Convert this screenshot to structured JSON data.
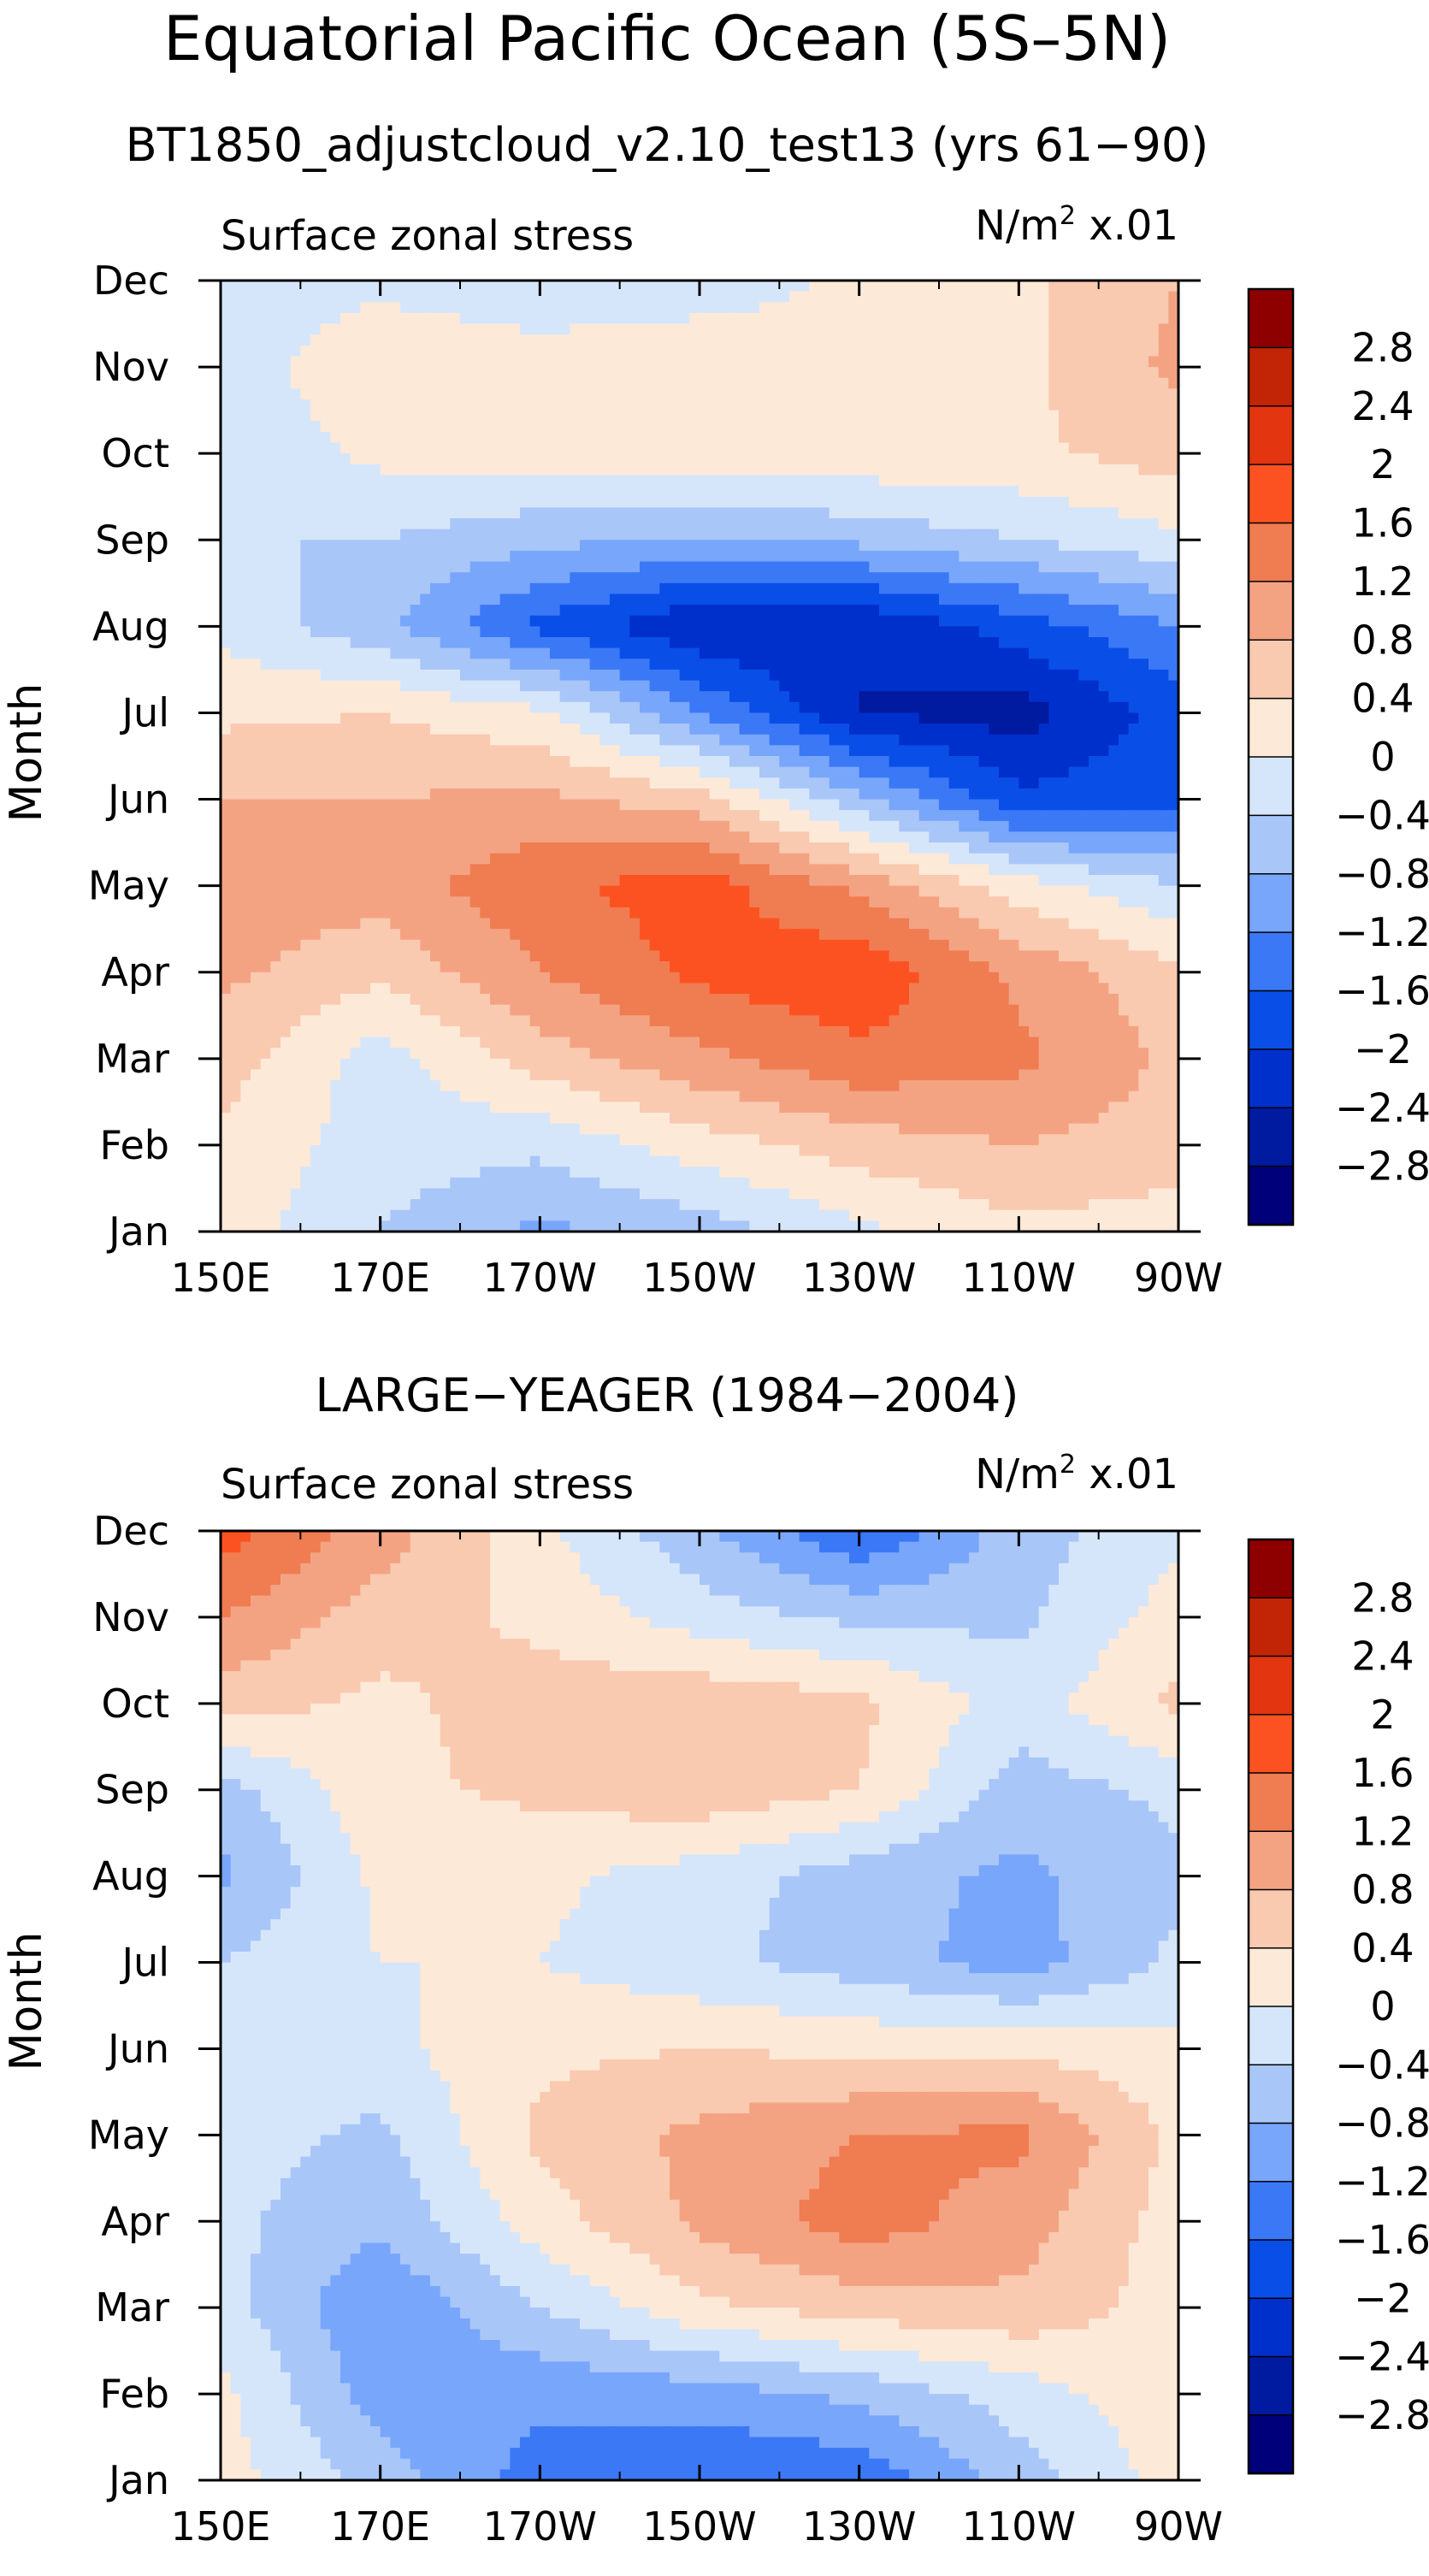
{
  "figure": {
    "title": "Equatorial Pacific Ocean (5S–5N)"
  },
  "colorbar_labels": [
    "2.8",
    "2.4",
    "2",
    "1.6",
    "1.2",
    "0.8",
    "0.4",
    "0",
    "−0.4",
    "−0.8",
    "−1.2",
    "−1.6",
    "−2",
    "−2.4",
    "−2.8"
  ],
  "colors": {
    "scale": [
      "#00007a",
      "#001aa0",
      "#0030cc",
      "#0a4ee8",
      "#3a78f6",
      "#78a6fa",
      "#a9c6f8",
      "#d6e6fa",
      "#fde9d8",
      "#f9c9b0",
      "#f4a382",
      "#f07c52",
      "#fc5222",
      "#e23510",
      "#c22406",
      "#8e0000"
    ]
  },
  "chart_data": [
    {
      "type": "heatmap",
      "title": "BT1850_adjustcloud_v2.10_test13 (yrs 61−90)",
      "field_label": "Surface zonal stress",
      "units_label": "N/m",
      "units_power": "2",
      "units_scale": " x.01",
      "xlabel": "",
      "ylabel": "Month",
      "x_ticks": [
        "150E",
        "170E",
        "170W",
        "150W",
        "130W",
        "110W",
        "90W"
      ],
      "x_lon": [
        150,
        170,
        190,
        210,
        230,
        250,
        270
      ],
      "y_ticks": [
        "Jan",
        "Feb",
        "Mar",
        "Apr",
        "May",
        "Jun",
        "Jul",
        "Aug",
        "Sep",
        "Oct",
        "Nov",
        "Dec"
      ],
      "xlim": [
        150,
        270
      ],
      "ylim": [
        1,
        12
      ],
      "levels": [
        -2.8,
        -2.4,
        -2,
        -1.6,
        -1.2,
        -0.8,
        -0.4,
        0,
        0.4,
        0.8,
        1.2,
        1.6,
        2,
        2.4,
        2.8
      ],
      "lon_grid": [
        150,
        170,
        190,
        210,
        230,
        250,
        270
      ],
      "values": [
        [
          0.2,
          -0.4,
          -0.9,
          -0.6,
          -0.1,
          0.3,
          0.2
        ],
        [
          0.3,
          -0.2,
          -0.3,
          0.2,
          0.6,
          0.8,
          0.6
        ],
        [
          0.6,
          -0.2,
          0.6,
          1.1,
          1.5,
          1.3,
          0.7
        ],
        [
          0.9,
          0.5,
          1.2,
          1.7,
          1.9,
          1.1,
          0.5
        ],
        [
          1.0,
          1.0,
          1.5,
          1.8,
          1.1,
          0.2,
          -0.4
        ],
        [
          0.8,
          0.8,
          0.9,
          0.6,
          -0.7,
          -1.9,
          -1.7
        ],
        [
          0.3,
          0.4,
          0.1,
          -1.2,
          -2.4,
          -2.6,
          -1.8
        ],
        [
          -0.1,
          -0.7,
          -1.7,
          -2.4,
          -2.4,
          -1.8,
          -1.2
        ],
        [
          -0.4,
          -0.4,
          -0.7,
          -0.8,
          -0.7,
          -0.4,
          -0.1
        ],
        [
          -0.3,
          0.1,
          0.2,
          0.3,
          0.3,
          0.3,
          0.6
        ],
        [
          -0.2,
          0.3,
          0.2,
          0.4,
          0.2,
          0.3,
          0.9
        ],
        [
          -0.2,
          -0.1,
          -0.3,
          -0.3,
          0.1,
          0.3,
          0.8
        ]
      ]
    },
    {
      "type": "heatmap",
      "title": "LARGE−YEAGER (1984−2004)",
      "field_label": "Surface zonal stress",
      "units_label": "N/m",
      "units_power": "2",
      "units_scale": " x.01",
      "xlabel": "",
      "ylabel": "Month",
      "x_ticks": [
        "150E",
        "170E",
        "170W",
        "150W",
        "130W",
        "110W",
        "90W"
      ],
      "x_lon": [
        150,
        170,
        190,
        210,
        230,
        250,
        270
      ],
      "y_ticks": [
        "Jan",
        "Feb",
        "Mar",
        "Apr",
        "May",
        "Jun",
        "Jul",
        "Aug",
        "Sep",
        "Oct",
        "Nov",
        "Dec"
      ],
      "xlim": [
        150,
        270
      ],
      "ylim": [
        1,
        12
      ],
      "levels": [
        -2.8,
        -2.4,
        -2,
        -1.6,
        -1.2,
        -0.8,
        -0.4,
        0,
        0.4,
        0.8,
        1.2,
        1.6,
        2,
        2.4,
        2.8
      ],
      "lon_grid": [
        150,
        170,
        190,
        210,
        230,
        250,
        270
      ],
      "values": [
        [
          0.2,
          -0.6,
          -1.4,
          -1.6,
          -1.5,
          -0.6,
          0.2
        ],
        [
          0.1,
          -1.0,
          -1.1,
          -1.0,
          -0.7,
          -0.2,
          0.3
        ],
        [
          -0.2,
          -1.2,
          -0.4,
          0.3,
          0.6,
          0.7,
          0.2
        ],
        [
          -0.3,
          -0.7,
          0.2,
          0.9,
          1.4,
          1.0,
          0.2
        ],
        [
          -0.2,
          -0.5,
          0.5,
          0.9,
          1.2,
          1.3,
          0.3
        ],
        [
          -0.1,
          -0.1,
          0.3,
          0.4,
          0.3,
          0.3,
          0.1
        ],
        [
          -0.4,
          0.0,
          0.0,
          -0.3,
          -0.6,
          -1.0,
          -0.3
        ],
        [
          -0.9,
          0.1,
          0.1,
          -0.2,
          -0.6,
          -0.9,
          -0.5
        ],
        [
          -0.6,
          0.3,
          0.5,
          0.7,
          0.4,
          -0.6,
          -0.3
        ],
        [
          0.6,
          0.3,
          0.6,
          0.7,
          0.5,
          -0.2,
          0.5
        ],
        [
          1.2,
          0.6,
          0.3,
          -0.2,
          -0.5,
          -0.5,
          0.2
        ],
        [
          1.8,
          1.0,
          0.1,
          -0.7,
          -1.6,
          -0.6,
          -0.1
        ]
      ]
    }
  ]
}
